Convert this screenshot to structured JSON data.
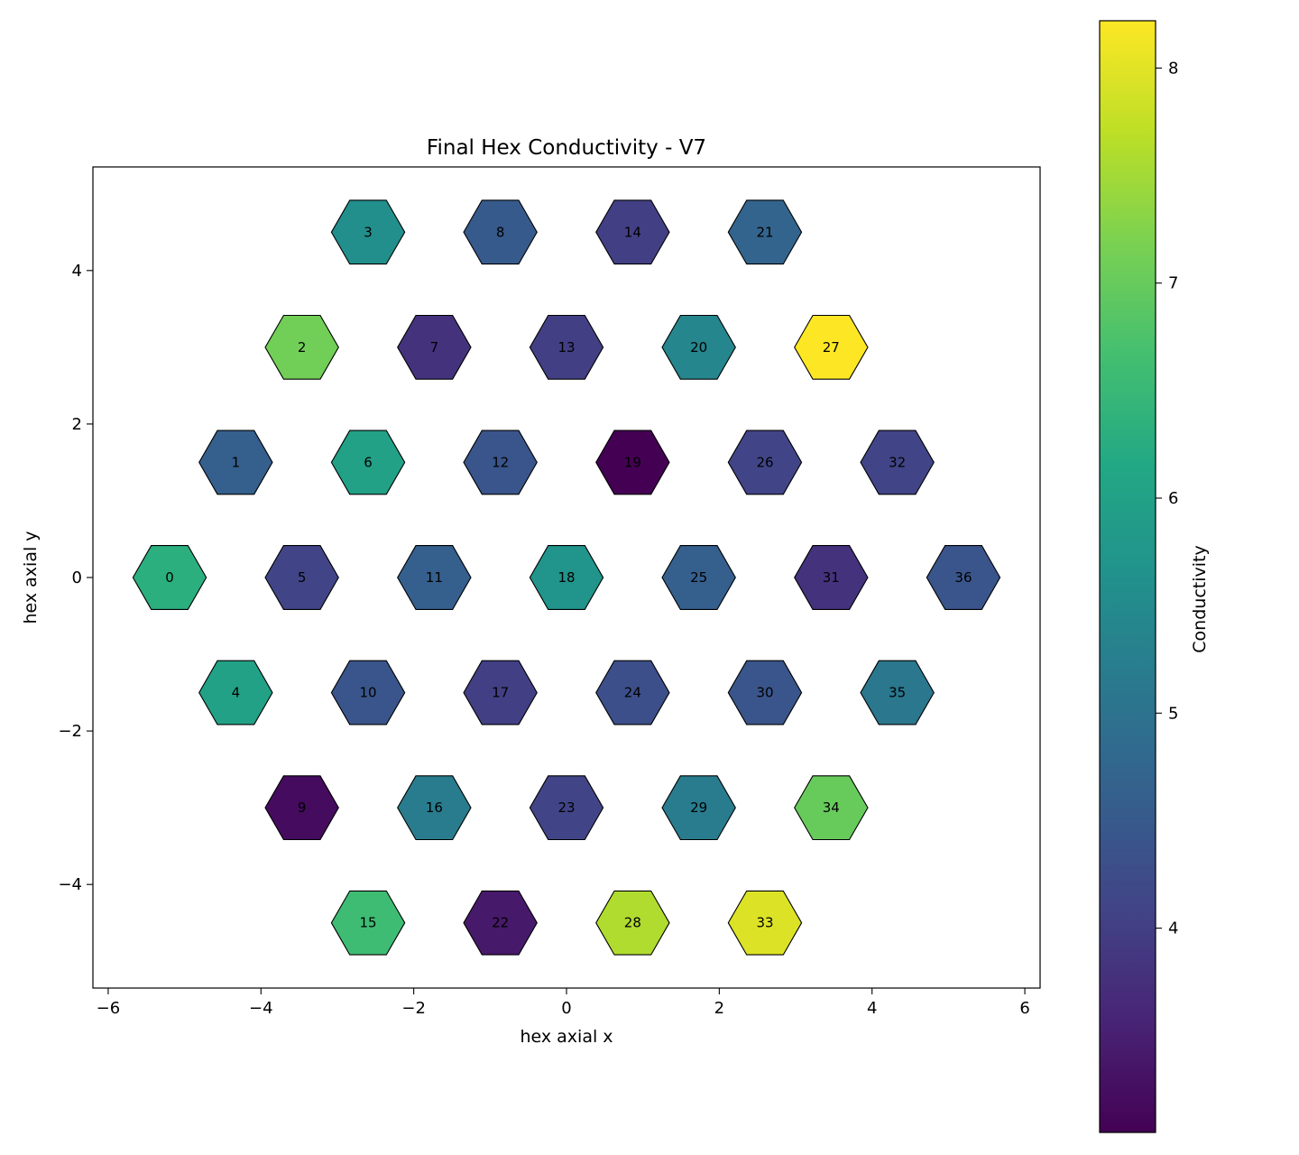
{
  "chart_data": {
    "type": "heatmap",
    "title": "Final Hex Conductivity - V7",
    "xlabel": "hex axial x",
    "ylabel": "hex axial y",
    "xlim": [
      -6.2,
      6.2
    ],
    "ylim": [
      -5.35,
      5.35
    ],
    "xticks": [
      -6,
      -4,
      -2,
      0,
      2,
      4,
      6
    ],
    "yticks": [
      -4,
      -2,
      0,
      2,
      4
    ],
    "grid": false,
    "colormap": "viridis",
    "colorbar": {
      "label": "Conductivity",
      "range": [
        3.05,
        8.22
      ],
      "ticks": [
        4,
        5,
        6,
        7,
        8
      ]
    },
    "points": [
      {
        "id": "0",
        "x": -5.196,
        "y": 0.0,
        "value": 6.3
      },
      {
        "id": "1",
        "x": -4.33,
        "y": 1.5,
        "value": 4.6
      },
      {
        "id": "2",
        "x": -3.464,
        "y": 3.0,
        "value": 7.1
      },
      {
        "id": "3",
        "x": -2.598,
        "y": 4.5,
        "value": 5.6
      },
      {
        "id": "4",
        "x": -4.33,
        "y": -1.5,
        "value": 6.0
      },
      {
        "id": "5",
        "x": -3.464,
        "y": 0.0,
        "value": 4.1
      },
      {
        "id": "6",
        "x": -2.598,
        "y": 1.5,
        "value": 6.0
      },
      {
        "id": "7",
        "x": -1.732,
        "y": 3.0,
        "value": 3.8
      },
      {
        "id": "8",
        "x": -0.866,
        "y": 4.5,
        "value": 4.5
      },
      {
        "id": "9",
        "x": -3.464,
        "y": -3.0,
        "value": 3.2
      },
      {
        "id": "10",
        "x": -2.598,
        "y": -1.5,
        "value": 4.4
      },
      {
        "id": "11",
        "x": -1.732,
        "y": 0.0,
        "value": 4.6
      },
      {
        "id": "12",
        "x": -0.866,
        "y": 1.5,
        "value": 4.4
      },
      {
        "id": "13",
        "x": 0.0,
        "y": 3.0,
        "value": 4.0
      },
      {
        "id": "14",
        "x": 0.866,
        "y": 4.5,
        "value": 4.0
      },
      {
        "id": "15",
        "x": -2.598,
        "y": -4.5,
        "value": 6.6
      },
      {
        "id": "16",
        "x": -1.732,
        "y": -3.0,
        "value": 5.2
      },
      {
        "id": "17",
        "x": -0.866,
        "y": -1.5,
        "value": 4.0
      },
      {
        "id": "18",
        "x": 0.0,
        "y": 0.0,
        "value": 5.7
      },
      {
        "id": "19",
        "x": 0.866,
        "y": 1.5,
        "value": 3.05
      },
      {
        "id": "20",
        "x": 1.732,
        "y": 3.0,
        "value": 5.4
      },
      {
        "id": "21",
        "x": 2.598,
        "y": 4.5,
        "value": 4.7
      },
      {
        "id": "22",
        "x": -0.866,
        "y": -4.5,
        "value": 3.4
      },
      {
        "id": "23",
        "x": 0.0,
        "y": -3.0,
        "value": 4.1
      },
      {
        "id": "24",
        "x": 0.866,
        "y": -1.5,
        "value": 4.3
      },
      {
        "id": "25",
        "x": 1.732,
        "y": 0.0,
        "value": 4.6
      },
      {
        "id": "26",
        "x": 2.598,
        "y": 1.5,
        "value": 4.1
      },
      {
        "id": "27",
        "x": 3.464,
        "y": 3.0,
        "value": 8.22
      },
      {
        "id": "28",
        "x": 0.866,
        "y": -4.5,
        "value": 7.6
      },
      {
        "id": "29",
        "x": 1.732,
        "y": -3.0,
        "value": 5.2
      },
      {
        "id": "30",
        "x": 2.598,
        "y": -1.5,
        "value": 4.4
      },
      {
        "id": "31",
        "x": 3.464,
        "y": 0.0,
        "value": 3.8
      },
      {
        "id": "32",
        "x": 4.33,
        "y": 1.5,
        "value": 4.1
      },
      {
        "id": "33",
        "x": 2.598,
        "y": -4.5,
        "value": 7.95
      },
      {
        "id": "34",
        "x": 3.464,
        "y": -3.0,
        "value": 7.0
      },
      {
        "id": "35",
        "x": 4.33,
        "y": -1.5,
        "value": 5.1
      },
      {
        "id": "36",
        "x": 5.196,
        "y": 0.0,
        "value": 4.4
      }
    ]
  }
}
